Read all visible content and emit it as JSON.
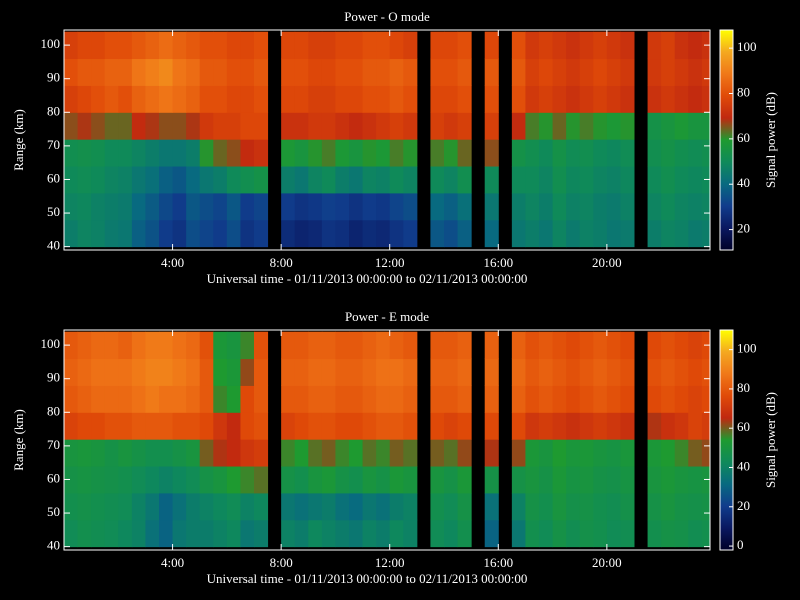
{
  "chart_data": [
    {
      "type": "heatmap",
      "title": "Power - O mode",
      "x_label": "Universal time - 01/11/2013 00:00:00 to 02/11/2013 00:00:00",
      "y_label": "Range (km)",
      "colorbar_label": "Signal power (dB)",
      "xlim": [
        0,
        23.8
      ],
      "ylim": [
        39,
        104.5
      ],
      "clim": [
        11,
        108
      ],
      "xticks": [
        {
          "value": 4,
          "label": "4:00"
        },
        {
          "value": 8,
          "label": "8:00"
        },
        {
          "value": 12,
          "label": "12:00"
        },
        {
          "value": 16,
          "label": "16:00"
        },
        {
          "value": 20,
          "label": "20:00"
        }
      ],
      "yticks": [
        40,
        50,
        60,
        70,
        80,
        90,
        100
      ],
      "cticks": [
        20,
        40,
        60,
        80,
        100
      ],
      "colormap": [
        "#000028",
        "#0a1860",
        "#103c8c",
        "#086a80",
        "#0f8a5a",
        "#1e9a30",
        "#c02810",
        "#e04a08",
        "#f07818",
        "#f4a820",
        "#ffff00"
      ],
      "x": [
        0,
        0.5,
        1,
        1.5,
        2,
        2.5,
        3,
        3.5,
        4,
        4.5,
        5,
        5.5,
        6,
        6.5,
        7,
        7.5,
        8,
        8.5,
        9,
        9.5,
        10,
        10.5,
        11,
        11.5,
        12,
        12.5,
        13,
        13.5,
        14,
        14.5,
        15,
        15.5,
        16,
        16.5,
        17,
        17.5,
        18,
        18.5,
        19,
        19.5,
        20,
        20.5,
        21,
        21.5,
        22,
        22.5,
        23,
        23.5
      ],
      "y": [
        44,
        52,
        60,
        68,
        76,
        84,
        92,
        100
      ],
      "values": [
        [
          46,
          48,
          47,
          45,
          44,
          38,
          35,
          30,
          28,
          34,
          32,
          30,
          34,
          28,
          30,
          null,
          26,
          24,
          25,
          28,
          27,
          24,
          26,
          25,
          28,
          30,
          null,
          36,
          34,
          38,
          null,
          40,
          null,
          44,
          46,
          44,
          48,
          45,
          47,
          46,
          44,
          45,
          null,
          46,
          48,
          47,
          45,
          46
        ],
        [
          48,
          49,
          47,
          46,
          45,
          40,
          37,
          33,
          30,
          36,
          34,
          32,
          36,
          30,
          32,
          null,
          30,
          28,
          29,
          31,
          30,
          28,
          30,
          29,
          32,
          34,
          null,
          40,
          38,
          42,
          null,
          44,
          null,
          46,
          48,
          46,
          50,
          47,
          48,
          46,
          45,
          47,
          null,
          48,
          50,
          48,
          47,
          48
        ],
        [
          50,
          51,
          50,
          48,
          47,
          44,
          42,
          38,
          36,
          40,
          44,
          46,
          50,
          52,
          54,
          null,
          46,
          44,
          48,
          50,
          46,
          44,
          48,
          47,
          50,
          48,
          null,
          50,
          48,
          52,
          null,
          50,
          null,
          50,
          50,
          48,
          52,
          49,
          50,
          48,
          47,
          49,
          null,
          50,
          52,
          50,
          49,
          50
        ],
        [
          52,
          53,
          52,
          50,
          50,
          48,
          46,
          44,
          44,
          46,
          60,
          64,
          66,
          70,
          72,
          null,
          58,
          56,
          60,
          62,
          58,
          56,
          60,
          58,
          62,
          60,
          null,
          62,
          60,
          64,
          null,
          66,
          null,
          54,
          52,
          50,
          54,
          51,
          52,
          50,
          49,
          51,
          null,
          52,
          54,
          52,
          51,
          52
        ],
        [
          66,
          68,
          66,
          64,
          64,
          70,
          68,
          66,
          66,
          68,
          74,
          76,
          76,
          78,
          78,
          null,
          72,
          72,
          74,
          74,
          72,
          70,
          72,
          74,
          76,
          74,
          null,
          76,
          74,
          76,
          null,
          76,
          null,
          70,
          62,
          60,
          64,
          60,
          62,
          60,
          58,
          60,
          null,
          54,
          56,
          58,
          56,
          56
        ],
        [
          76,
          78,
          80,
          82,
          80,
          84,
          86,
          88,
          86,
          84,
          80,
          80,
          78,
          78,
          80,
          null,
          78,
          78,
          76,
          76,
          78,
          78,
          80,
          80,
          82,
          80,
          null,
          78,
          78,
          80,
          null,
          80,
          null,
          80,
          74,
          76,
          74,
          72,
          74,
          76,
          74,
          72,
          null,
          72,
          74,
          72,
          70,
          72
        ],
        [
          80,
          82,
          82,
          84,
          84,
          88,
          90,
          92,
          88,
          86,
          82,
          82,
          80,
          80,
          82,
          null,
          80,
          80,
          78,
          78,
          80,
          80,
          82,
          82,
          84,
          82,
          null,
          80,
          80,
          82,
          null,
          82,
          null,
          82,
          76,
          78,
          76,
          74,
          76,
          78,
          76,
          74,
          null,
          74,
          76,
          74,
          72,
          74
        ],
        [
          76,
          78,
          78,
          80,
          80,
          82,
          84,
          86,
          84,
          82,
          80,
          80,
          78,
          78,
          80,
          null,
          78,
          78,
          76,
          76,
          78,
          78,
          80,
          80,
          78,
          76,
          null,
          78,
          78,
          80,
          null,
          78,
          null,
          80,
          74,
          76,
          74,
          72,
          74,
          76,
          74,
          72,
          null,
          74,
          76,
          72,
          70,
          72
        ]
      ]
    },
    {
      "type": "heatmap",
      "title": "Power - E mode",
      "x_label": "Universal time - 01/11/2013 00:00:00 to 02/11/2013 00:00:00",
      "y_label": "Range (km)",
      "colorbar_label": "Signal power (dB)",
      "xlim": [
        0,
        23.8
      ],
      "ylim": [
        39,
        104.5
      ],
      "clim": [
        -2,
        110
      ],
      "xticks": [
        {
          "value": 4,
          "label": "4:00"
        },
        {
          "value": 8,
          "label": "8:00"
        },
        {
          "value": 12,
          "label": "12:00"
        },
        {
          "value": 16,
          "label": "16:00"
        },
        {
          "value": 20,
          "label": "20:00"
        }
      ],
      "yticks": [
        40,
        50,
        60,
        70,
        80,
        90,
        100
      ],
      "cticks": [
        0,
        20,
        40,
        60,
        80,
        100
      ],
      "colormap": [
        "#000028",
        "#0a1860",
        "#103c8c",
        "#086a80",
        "#0f8a5a",
        "#1e9a30",
        "#c02810",
        "#e04a08",
        "#f07818",
        "#f4a820",
        "#ffff00"
      ],
      "x": [
        0,
        0.5,
        1,
        1.5,
        2,
        2.5,
        3,
        3.5,
        4,
        4.5,
        5,
        5.5,
        6,
        6.5,
        7,
        7.5,
        8,
        8.5,
        9,
        9.5,
        10,
        10.5,
        11,
        11.5,
        12,
        12.5,
        13,
        13.5,
        14,
        14.5,
        15,
        15.5,
        16,
        16.5,
        17,
        17.5,
        18,
        18.5,
        19,
        19.5,
        20,
        20.5,
        21,
        21.5,
        22,
        22.5,
        23,
        23.5
      ],
      "y": [
        44,
        52,
        60,
        68,
        76,
        84,
        92,
        100
      ],
      "values": [
        [
          44,
          46,
          45,
          44,
          42,
          40,
          34,
          30,
          36,
          38,
          38,
          40,
          42,
          36,
          38,
          null,
          40,
          38,
          42,
          40,
          38,
          36,
          40,
          38,
          42,
          40,
          null,
          44,
          42,
          46,
          null,
          30,
          null,
          36,
          46,
          44,
          48,
          45,
          47,
          46,
          44,
          45,
          null,
          46,
          48,
          47,
          45,
          46
        ],
        [
          46,
          47,
          46,
          45,
          44,
          40,
          36,
          30,
          34,
          38,
          40,
          42,
          44,
          40,
          42,
          null,
          36,
          34,
          36,
          38,
          34,
          32,
          36,
          34,
          38,
          40,
          null,
          46,
          44,
          48,
          null,
          34,
          null,
          40,
          48,
          46,
          50,
          47,
          48,
          46,
          45,
          47,
          null,
          48,
          50,
          48,
          47,
          48
        ],
        [
          48,
          49,
          48,
          47,
          46,
          44,
          42,
          40,
          42,
          44,
          48,
          50,
          54,
          56,
          58,
          null,
          48,
          46,
          50,
          52,
          48,
          46,
          50,
          48,
          52,
          50,
          null,
          50,
          48,
          52,
          null,
          48,
          null,
          48,
          50,
          48,
          52,
          49,
          50,
          48,
          47,
          49,
          null,
          50,
          52,
          50,
          49,
          50
        ],
        [
          50,
          51,
          50,
          48,
          50,
          48,
          46,
          46,
          48,
          50,
          60,
          64,
          66,
          70,
          72,
          null,
          56,
          54,
          58,
          60,
          56,
          54,
          58,
          56,
          60,
          58,
          null,
          60,
          58,
          62,
          null,
          64,
          null,
          62,
          52,
          50,
          54,
          51,
          52,
          50,
          49,
          51,
          null,
          52,
          54,
          56,
          60,
          62
        ],
        [
          74,
          76,
          76,
          78,
          78,
          80,
          80,
          80,
          78,
          78,
          76,
          70,
          66,
          76,
          78,
          null,
          74,
          76,
          78,
          78,
          76,
          76,
          78,
          80,
          80,
          78,
          null,
          76,
          74,
          76,
          null,
          76,
          null,
          76,
          70,
          72,
          70,
          68,
          70,
          72,
          70,
          68,
          null,
          64,
          68,
          70,
          74,
          72
        ],
        [
          80,
          82,
          84,
          84,
          84,
          86,
          88,
          86,
          86,
          84,
          80,
          56,
          54,
          76,
          80,
          null,
          80,
          80,
          82,
          82,
          80,
          80,
          82,
          84,
          84,
          82,
          null,
          80,
          80,
          82,
          null,
          82,
          null,
          82,
          78,
          80,
          78,
          76,
          78,
          80,
          78,
          76,
          null,
          76,
          78,
          76,
          74,
          76
        ],
        [
          82,
          84,
          86,
          86,
          86,
          88,
          90,
          90,
          88,
          86,
          80,
          54,
          52,
          62,
          80,
          null,
          82,
          82,
          84,
          84,
          82,
          82,
          84,
          86,
          86,
          84,
          null,
          82,
          82,
          84,
          null,
          84,
          null,
          84,
          80,
          82,
          80,
          78,
          80,
          82,
          80,
          78,
          null,
          78,
          80,
          78,
          76,
          78
        ],
        [
          80,
          82,
          84,
          84,
          82,
          86,
          88,
          88,
          86,
          84,
          78,
          52,
          50,
          56,
          78,
          null,
          80,
          80,
          82,
          82,
          80,
          80,
          82,
          84,
          82,
          80,
          null,
          80,
          80,
          82,
          null,
          82,
          null,
          82,
          78,
          80,
          78,
          76,
          78,
          80,
          78,
          76,
          null,
          76,
          78,
          76,
          74,
          76
        ]
      ]
    }
  ]
}
